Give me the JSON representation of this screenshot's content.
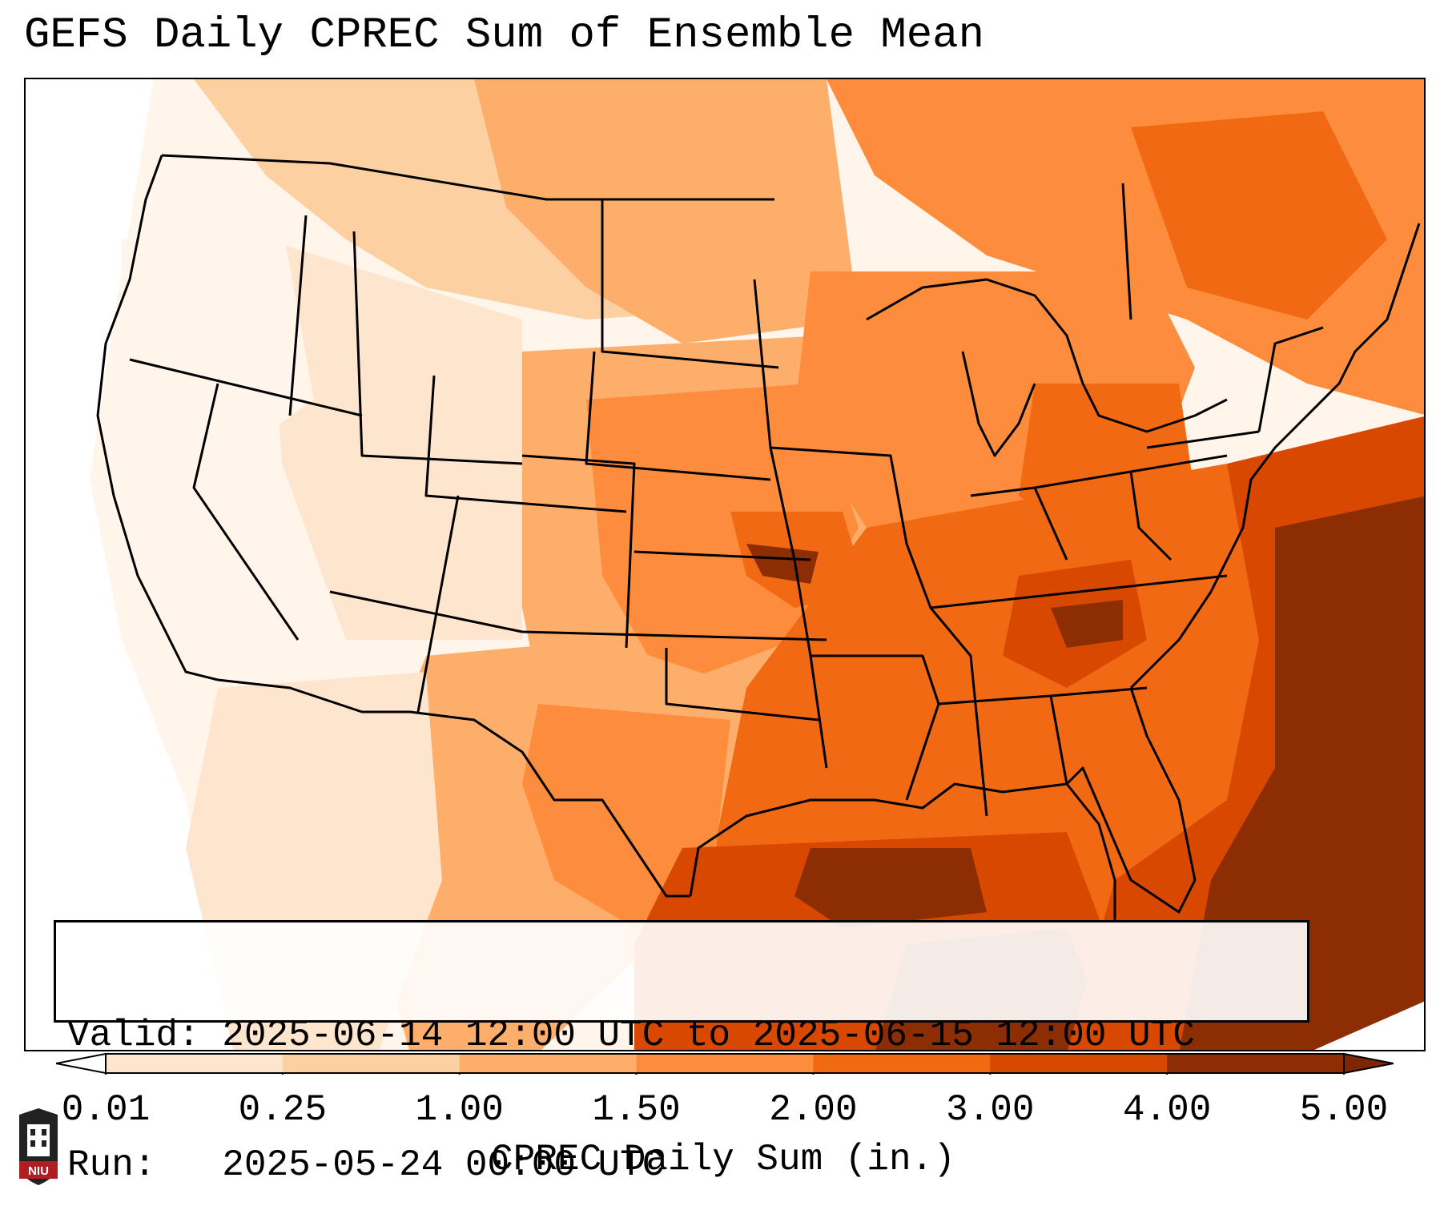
{
  "title": "GEFS Daily CPREC Sum of Ensemble Mean",
  "info": {
    "valid_label": "Valid:",
    "valid_value": "2025-06-14 12:00 UTC to 2025-06-15 12:00 UTC",
    "run_label": "Run:",
    "run_value": "2025-05-24 00:00 UTC"
  },
  "colorbar": {
    "label": "CPREC Daily Sum (in.)",
    "ticks": [
      "0.01",
      "0.25",
      "1.00",
      "1.50",
      "2.00",
      "3.00",
      "4.00",
      "5.00"
    ],
    "colors": [
      "#fff5eb",
      "#fee6ce",
      "#fdd0a2",
      "#fdae6b",
      "#fd8d3c",
      "#f16913",
      "#d94801",
      "#8c2d04"
    ],
    "under_color": "#ffffff",
    "over_color": "#7f2704"
  },
  "logo": {
    "text": "NIU",
    "colors": {
      "shield": "#b01e23",
      "building": "#222222"
    }
  },
  "map": {
    "projection": "Lambert conformal",
    "region": "CONUS"
  }
}
